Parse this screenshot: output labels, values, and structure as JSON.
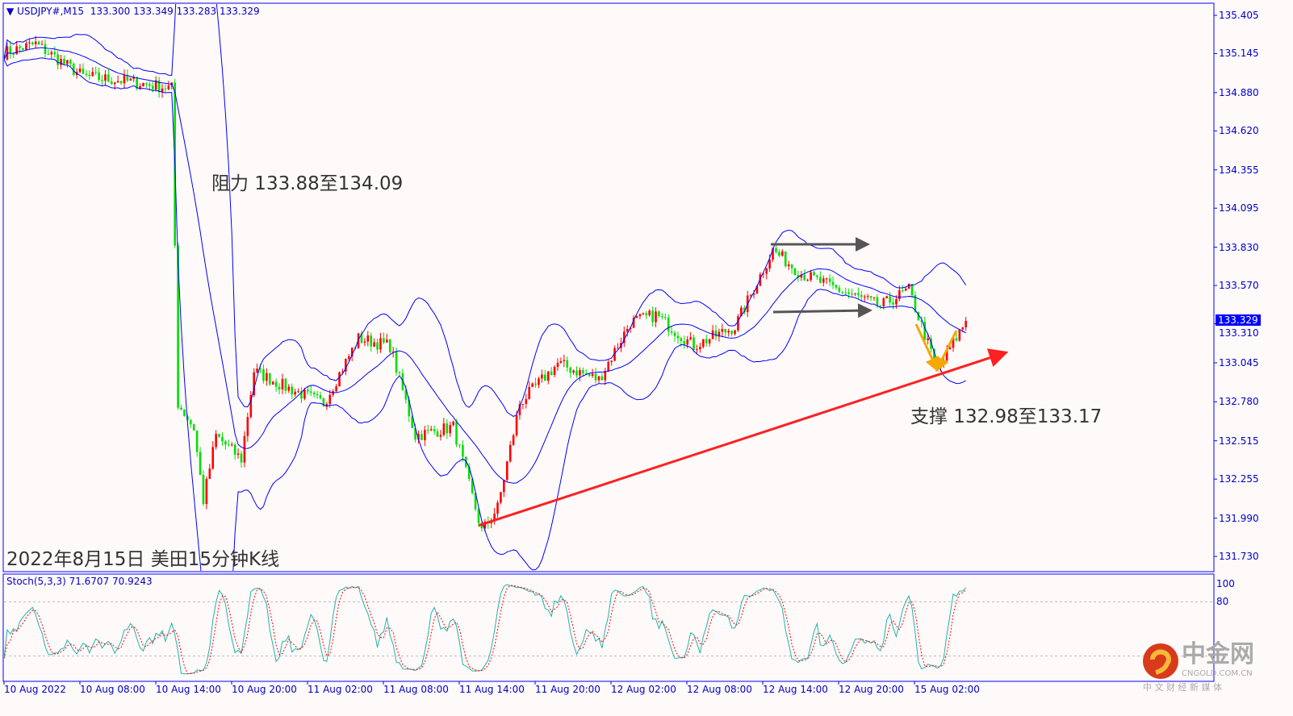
{
  "header": {
    "symbol": "USDJPY#,M15",
    "ohlc": "133.300 133.349 133.283 133.329"
  },
  "stoch_header": "Stoch(5,3,3) 71.6707 70.9243",
  "current_price": "133.329",
  "annotations": {
    "resistance": "阻力 133.88至134.09",
    "support": "支撑 132.98至133.17",
    "title": "2022年8月15日 美田15分钟K线"
  },
  "watermark": {
    "brand": "中金网",
    "url": "CNGOLD.COM.CN",
    "slogan": "中 文 财 经 新 媒 体"
  },
  "colors": {
    "up": "#ff0000",
    "down": "#00e000",
    "bands": "#0000ff",
    "stoch_main": "#20b2aa",
    "stoch_signal": "#ff0000",
    "trendline": "#ff2020",
    "axis": "#0000ff"
  },
  "chart_data": {
    "type": "candlestick",
    "symbol": "USDJPY#",
    "timeframe": "M15",
    "indicators": [
      "Bollinger Bands",
      "Stoch(5,3,3)"
    ],
    "y_ticks": [
      "135.405",
      "135.145",
      "134.880",
      "134.620",
      "134.355",
      "134.095",
      "133.830",
      "133.570",
      "133.310",
      "133.045",
      "132.780",
      "132.515",
      "132.255",
      "131.990",
      "131.730"
    ],
    "ylim": [
      131.7,
      135.45
    ],
    "stoch_ticks": [
      "100",
      "80",
      "20",
      "0"
    ],
    "x_ticks": [
      "10 Aug 2022",
      "10 Aug 08:00",
      "10 Aug 14:00",
      "10 Aug 20:00",
      "11 Aug 02:00",
      "11 Aug 08:00",
      "11 Aug 14:00",
      "11 Aug 20:00",
      "12 Aug 02:00",
      "12 Aug 08:00",
      "12 Aug 14:00",
      "12 Aug 20:00",
      "15 Aug 02:00"
    ],
    "price_path": [
      {
        "bar": 0,
        "p": 135.15
      },
      {
        "bar": 10,
        "p": 135.21
      },
      {
        "bar": 25,
        "p": 134.99
      },
      {
        "bar": 38,
        "p": 134.96
      },
      {
        "bar": 53,
        "p": 134.91
      },
      {
        "bar": 55,
        "p": 132.77
      },
      {
        "bar": 60,
        "p": 132.6
      },
      {
        "bar": 63,
        "p": 132.11
      },
      {
        "bar": 67,
        "p": 132.55
      },
      {
        "bar": 75,
        "p": 132.39
      },
      {
        "bar": 79,
        "p": 132.99
      },
      {
        "bar": 89,
        "p": 132.88
      },
      {
        "bar": 101,
        "p": 132.77
      },
      {
        "bar": 112,
        "p": 133.21
      },
      {
        "bar": 122,
        "p": 133.16
      },
      {
        "bar": 130,
        "p": 132.55
      },
      {
        "bar": 142,
        "p": 132.61
      },
      {
        "bar": 151,
        "p": 131.9
      },
      {
        "bar": 156,
        "p": 132.06
      },
      {
        "bar": 163,
        "p": 132.77
      },
      {
        "bar": 175,
        "p": 133.04
      },
      {
        "bar": 188,
        "p": 132.93
      },
      {
        "bar": 198,
        "p": 133.32
      },
      {
        "bar": 206,
        "p": 133.37
      },
      {
        "bar": 218,
        "p": 133.16
      },
      {
        "bar": 231,
        "p": 133.29
      },
      {
        "bar": 243,
        "p": 133.81
      },
      {
        "bar": 252,
        "p": 133.65
      },
      {
        "bar": 264,
        "p": 133.54
      },
      {
        "bar": 277,
        "p": 133.43
      },
      {
        "bar": 286,
        "p": 133.54
      },
      {
        "bar": 295,
        "p": 132.99
      },
      {
        "bar": 304,
        "p": 133.33
      }
    ],
    "trendline": [
      {
        "bar": 150,
        "p": 131.94
      },
      {
        "bar": 316,
        "p": 133.11
      }
    ],
    "resistance_zone": [
      133.88,
      134.09
    ],
    "support_zone": [
      132.98,
      133.17
    ]
  }
}
